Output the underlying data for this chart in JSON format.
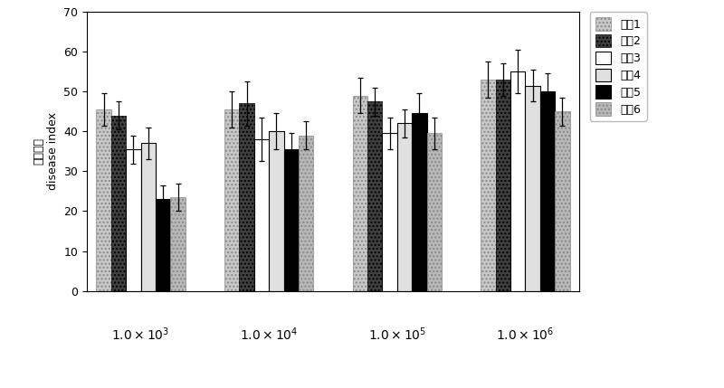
{
  "concentrations": [
    "1.0×10³",
    "1.0×10⁴",
    "1.0×10⁵",
    "1.0×10⁶"
  ],
  "materials": [
    "材枙1",
    "材枙2",
    "材枙3",
    "材枙4",
    "材枙5",
    "材枙6"
  ],
  "values": [
    [
      45.5,
      44.0,
      35.5,
      37.0,
      23.0,
      23.5
    ],
    [
      45.5,
      47.0,
      38.0,
      40.0,
      35.5,
      39.0
    ],
    [
      49.0,
      47.5,
      39.5,
      42.0,
      44.5,
      39.5
    ],
    [
      53.0,
      53.0,
      55.0,
      51.5,
      50.0,
      45.0
    ]
  ],
  "errors": [
    [
      4.0,
      3.5,
      3.5,
      4.0,
      3.5,
      3.5
    ],
    [
      4.5,
      5.5,
      5.5,
      4.5,
      4.0,
      3.5
    ],
    [
      4.5,
      3.5,
      4.0,
      3.5,
      5.0,
      4.0
    ],
    [
      4.5,
      4.0,
      5.5,
      4.0,
      4.5,
      3.5
    ]
  ],
  "bar_styles": [
    {
      "facecolor": "#c8c8c8",
      "hatch": "....",
      "edgecolor": "#888888",
      "linewidth": 0.5
    },
    {
      "facecolor": "#404040",
      "hatch": "....",
      "edgecolor": "#000000",
      "linewidth": 0.5
    },
    {
      "facecolor": "#ffffff",
      "hatch": "",
      "edgecolor": "#000000",
      "linewidth": 0.8
    },
    {
      "facecolor": "#e0e0e0",
      "hatch": "",
      "edgecolor": "#000000",
      "linewidth": 0.8
    },
    {
      "facecolor": "#000000",
      "hatch": "",
      "edgecolor": "#000000",
      "linewidth": 0.8
    },
    {
      "facecolor": "#b8b8b8",
      "hatch": "....",
      "edgecolor": "#888888",
      "linewidth": 0.5
    }
  ],
  "ylabel_cn": "病情指数",
  "ylabel_en": "disease index",
  "ylim": [
    0,
    70
  ],
  "yticks": [
    0,
    10,
    20,
    30,
    40,
    50,
    60,
    70
  ],
  "bar_width": 0.11,
  "group_positions": [
    0.4,
    1.35,
    2.3,
    3.25
  ],
  "figsize": [
    8.0,
    4.29
  ],
  "dpi": 100,
  "conc_labels": [
    "$1.0\\times10^{3}$",
    "$1.0\\times10^{4}$",
    "$1.0\\times10^{5}$",
    "$1.0\\times10^{6}$"
  ]
}
